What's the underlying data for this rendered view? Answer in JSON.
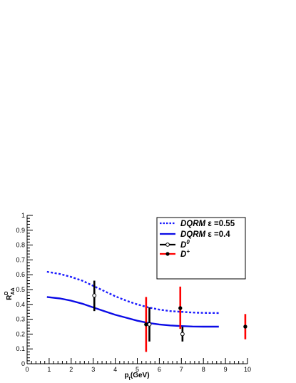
{
  "chart_data": {
    "type": "line",
    "title": "",
    "xlabel": "p_t(GeV)",
    "xlabel_main": "p",
    "xlabel_sub": "t",
    "xlabel_rest": "(GeV)",
    "ylabel_main": "R",
    "ylabel_sup": "D",
    "ylabel_sub": "AA",
    "xlim": [
      0,
      10
    ],
    "ylim": [
      0,
      1
    ],
    "grid": false,
    "legend_position": "top-right",
    "x_ticks": [
      "0",
      "1",
      "2",
      "3",
      "4",
      "5",
      "6",
      "7",
      "8",
      "9",
      "10"
    ],
    "y_ticks": [
      "0",
      "0.1",
      "0.2",
      "0.3",
      "0.4",
      "0.5",
      "0.6",
      "0.7",
      "0.8",
      "0.9",
      "1"
    ],
    "series": [
      {
        "name": "DQRM ε =0.55",
        "legend_main": "DQRM",
        "legend_eps": "ε =0.55",
        "kind": "curve",
        "style": "dotted",
        "color": "#1a1aff",
        "x": [
          0.9,
          1.5,
          2.0,
          2.5,
          3.0,
          3.5,
          4.0,
          4.5,
          5.0,
          5.5,
          6.0,
          6.5,
          7.0,
          7.5,
          8.0,
          8.7
        ],
        "y": [
          0.62,
          0.605,
          0.585,
          0.56,
          0.525,
          0.49,
          0.455,
          0.425,
          0.4,
          0.38,
          0.365,
          0.355,
          0.35,
          0.345,
          0.343,
          0.342
        ]
      },
      {
        "name": "DQRM ε =0.4",
        "legend_main": "DQRM",
        "legend_eps": "ε =0.4",
        "kind": "curve",
        "style": "solid",
        "color": "#0b0be6",
        "x": [
          0.9,
          1.5,
          2.0,
          2.5,
          3.0,
          3.5,
          4.0,
          4.5,
          5.0,
          5.5,
          6.0,
          6.5,
          7.0,
          7.5,
          8.0,
          8.7
        ],
        "y": [
          0.45,
          0.44,
          0.425,
          0.405,
          0.38,
          0.355,
          0.33,
          0.31,
          0.29,
          0.275,
          0.265,
          0.258,
          0.254,
          0.251,
          0.25,
          0.25
        ]
      },
      {
        "name": "D0",
        "legend_label": "D",
        "legend_sup": "0",
        "kind": "points",
        "marker": "open-circle",
        "color": "#000000",
        "points": [
          {
            "x": 3.05,
            "y": 0.46,
            "ylow": 0.355,
            "yhigh": 0.56
          },
          {
            "x": 5.55,
            "y": 0.265,
            "ylow": 0.15,
            "yhigh": 0.38
          },
          {
            "x": 7.05,
            "y": 0.2,
            "ylow": 0.15,
            "yhigh": 0.25
          }
        ]
      },
      {
        "name": "D+",
        "legend_label": "D",
        "legend_sup": "+",
        "kind": "points",
        "marker": "filled-circle",
        "color": "#ff0000",
        "points": [
          {
            "x": 5.4,
            "y": 0.265,
            "ylow": 0.08,
            "yhigh": 0.45
          },
          {
            "x": 6.95,
            "y": 0.375,
            "ylow": 0.235,
            "yhigh": 0.52
          },
          {
            "x": 9.9,
            "y": 0.25,
            "ylow": 0.165,
            "yhigh": 0.335
          }
        ]
      }
    ]
  }
}
